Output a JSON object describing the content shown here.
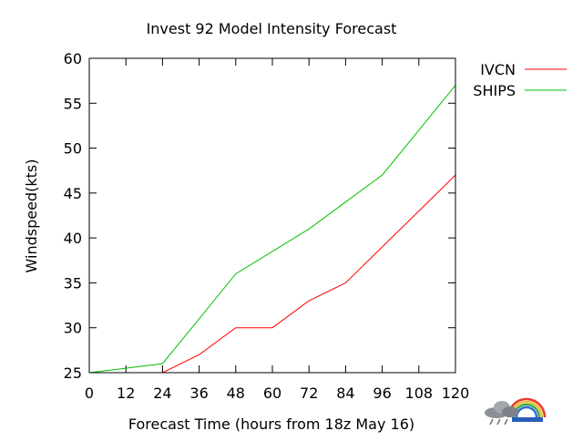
{
  "chart_data": {
    "type": "line",
    "title": "Invest 92 Model Intensity Forecast",
    "xlabel": "Forecast Time (hours from 18z May 16)",
    "ylabel": "Windspeed(kts)",
    "xlim": [
      0,
      120
    ],
    "ylim": [
      25,
      60
    ],
    "x_ticks": [
      0,
      12,
      24,
      36,
      48,
      60,
      72,
      84,
      96,
      108,
      120
    ],
    "y_ticks": [
      25,
      30,
      35,
      40,
      45,
      50,
      55,
      60
    ],
    "grid": false,
    "legend_position": "right",
    "series": [
      {
        "name": "IVCN",
        "color": "#ff0000",
        "x": [
          0,
          12,
          24,
          36,
          48,
          60,
          72,
          84,
          96,
          108,
          120
        ],
        "y": [
          25,
          25,
          25,
          27,
          30,
          30,
          33,
          35,
          39,
          43,
          47
        ]
      },
      {
        "name": "SHIPS",
        "color": "#00c000",
        "x": [
          0,
          12,
          24,
          36,
          48,
          60,
          72,
          84,
          96,
          108,
          120
        ],
        "y": [
          25,
          25.5,
          26,
          31,
          36,
          38.5,
          41,
          44,
          47,
          52,
          57
        ]
      }
    ]
  },
  "logo": {
    "icon": "weather-cloud-rainbow-icon"
  }
}
